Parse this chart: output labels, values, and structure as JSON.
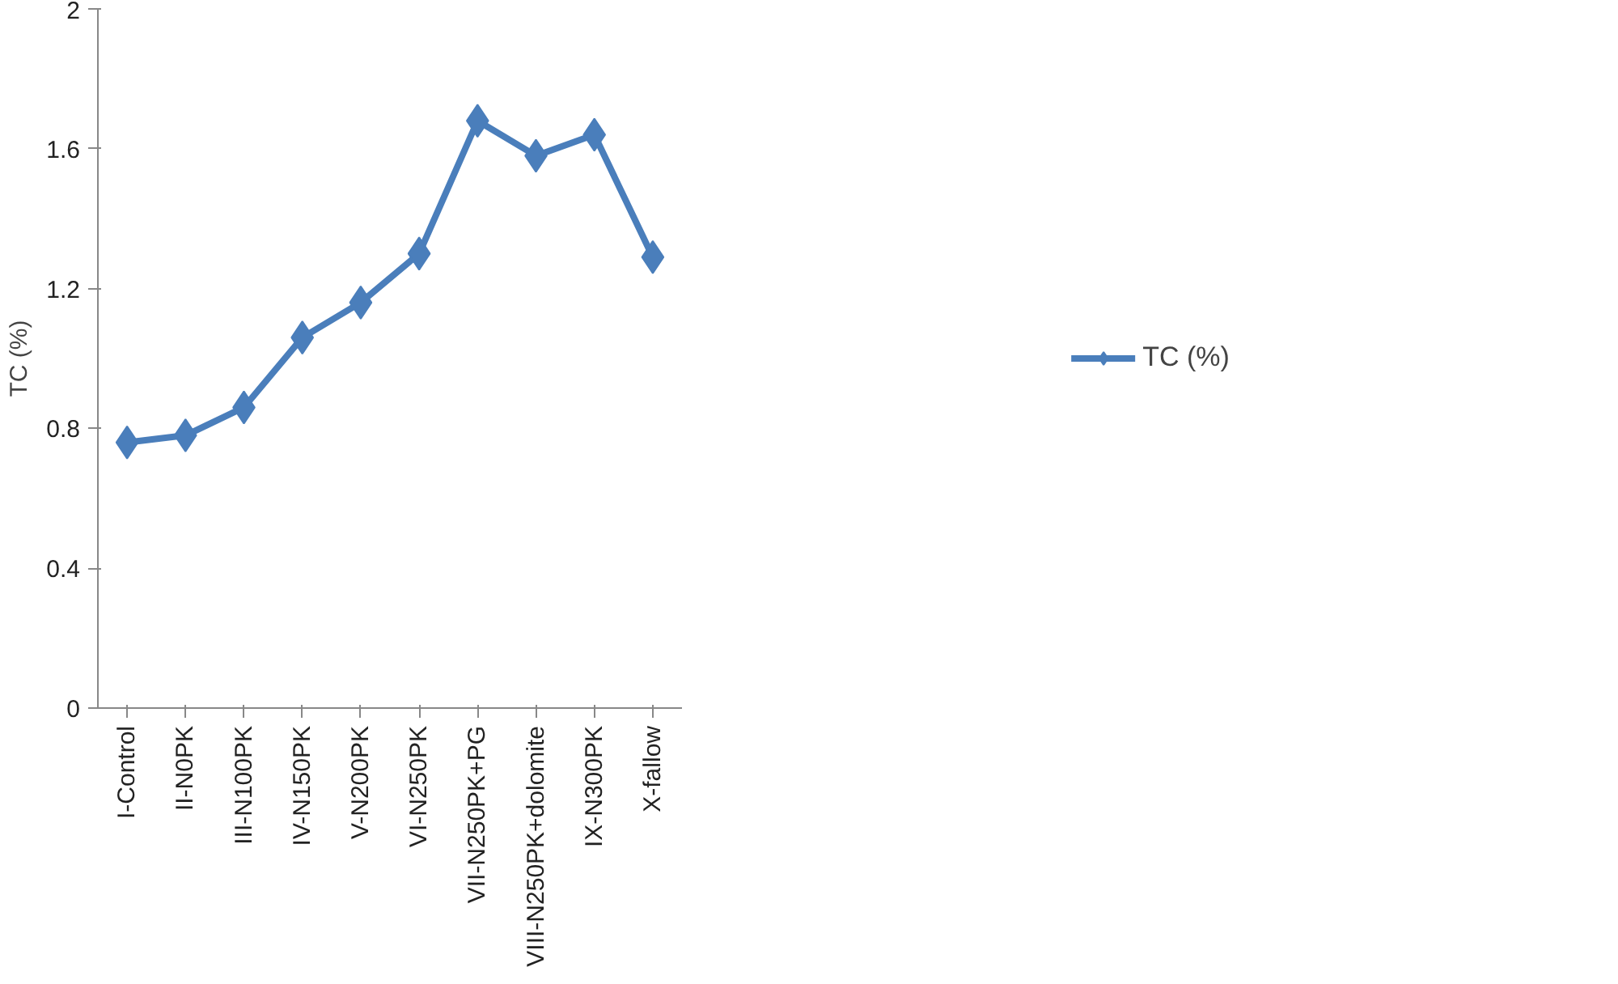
{
  "chart_data": {
    "type": "line",
    "ylabel": "TC (%)",
    "categories": [
      "I-Control",
      "II-N0PK",
      "III-N100PK",
      "IV-N150PK",
      "V-N200PK",
      "VI-N250PK",
      "VII-N250PK+PG",
      "VIII-N250PK+dolomite",
      "IX-N300PK",
      "X-fallow"
    ],
    "series": [
      {
        "name": "TC (%)",
        "color": "#4a7ebb",
        "values": [
          0.76,
          0.78,
          0.86,
          1.06,
          1.16,
          1.3,
          1.68,
          1.58,
          1.64,
          1.29
        ]
      }
    ],
    "ylim": [
      0,
      2
    ],
    "yticks": [
      0,
      0.4,
      0.8,
      1.2,
      1.6,
      2
    ],
    "grid": false,
    "legend": "right",
    "marker": "diamond",
    "line_style": "solid"
  }
}
